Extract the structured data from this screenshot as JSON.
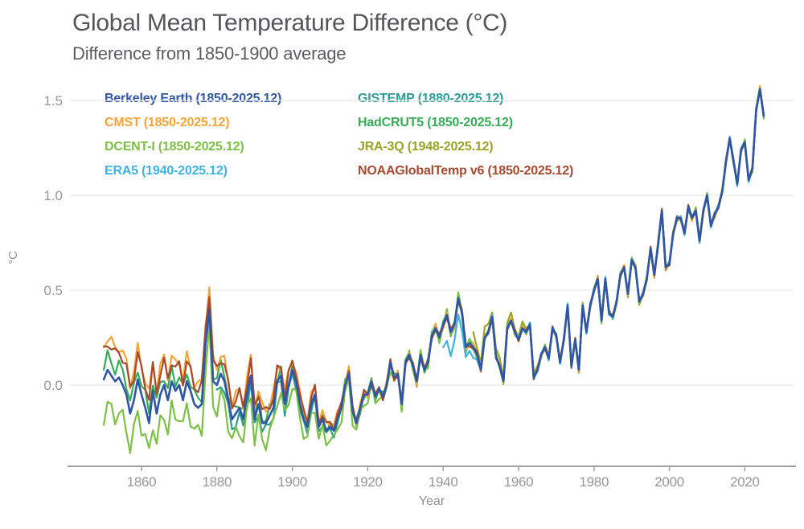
{
  "chart_data": {
    "type": "line",
    "title": "Global Mean Temperature Difference (°C)",
    "subtitle": "Difference from 1850-1900 average",
    "xlabel": "Year",
    "ylabel": "°C",
    "grid": true,
    "legend_position": "top-left, two columns",
    "xlim": [
      1848,
      2032
    ],
    "ylim": [
      -0.45,
      1.65
    ],
    "x_tick_values": [
      1860,
      1880,
      1900,
      1920,
      1940,
      1960,
      1980,
      2000,
      2020
    ],
    "x_tick_labels": [
      "1860",
      "1880",
      "1900",
      "1920",
      "1940",
      "1960",
      "1980",
      "2000",
      "2020"
    ],
    "y_tick_values": [
      0.0,
      0.5,
      1.0,
      1.5
    ],
    "y_tick_labels": [
      "0.0",
      "0.5",
      "1.0",
      "1.5"
    ],
    "years_start": 1850,
    "years_end": 2025,
    "base_values": [
      0.03,
      0.08,
      0.05,
      0.02,
      0.04,
      0.0,
      -0.05,
      -0.15,
      -0.08,
      0.03,
      -0.05,
      -0.12,
      -0.2,
      -0.03,
      -0.15,
      -0.05,
      0.0,
      -0.08,
      0.02,
      -0.03,
      0.0,
      -0.08,
      0.02,
      -0.03,
      -0.1,
      -0.12,
      -0.1,
      0.22,
      0.4,
      0.02,
      0.0,
      0.06,
      0.02,
      -0.08,
      -0.18,
      -0.15,
      -0.12,
      -0.18,
      -0.05,
      0.05,
      -0.18,
      -0.1,
      -0.2,
      -0.2,
      -0.16,
      -0.12,
      0.02,
      0.05,
      -0.1,
      0.0,
      0.08,
      0.02,
      -0.1,
      -0.18,
      -0.22,
      -0.1,
      -0.05,
      -0.22,
      -0.18,
      -0.24,
      -0.22,
      -0.24,
      -0.18,
      -0.12,
      0.0,
      0.06,
      -0.14,
      -0.2,
      -0.12,
      -0.05,
      -0.05,
      0.02,
      -0.06,
      -0.02,
      -0.06,
      0.0,
      0.12,
      0.04,
      0.06,
      -0.1,
      0.12,
      0.16,
      0.1,
      0.02,
      0.16,
      0.08,
      0.12,
      0.26,
      0.3,
      0.25,
      0.32,
      0.37,
      0.28,
      0.32,
      0.46,
      0.38,
      0.2,
      0.22,
      0.2,
      0.16,
      0.08,
      0.25,
      0.28,
      0.36,
      0.15,
      0.1,
      0.02,
      0.3,
      0.34,
      0.28,
      0.24,
      0.3,
      0.28,
      0.32,
      0.04,
      0.08,
      0.16,
      0.2,
      0.14,
      0.3,
      0.26,
      0.12,
      0.24,
      0.42,
      0.1,
      0.24,
      0.08,
      0.42,
      0.28,
      0.42,
      0.5,
      0.56,
      0.34,
      0.56,
      0.38,
      0.36,
      0.44,
      0.58,
      0.62,
      0.48,
      0.66,
      0.62,
      0.44,
      0.48,
      0.56,
      0.72,
      0.58,
      0.74,
      0.92,
      0.62,
      0.64,
      0.8,
      0.88,
      0.88,
      0.8,
      0.94,
      0.88,
      0.92,
      0.76,
      0.92,
      1.0,
      0.84,
      0.9,
      0.94,
      1.02,
      1.18,
      1.3,
      1.18,
      1.06,
      1.24,
      1.28,
      1.08,
      1.14,
      1.45,
      1.56,
      1.42
    ],
    "series": [
      {
        "name": "Berkeley Earth",
        "label": "Berkeley Earth (1850-2025.12)",
        "color": "#2f55a5",
        "start": 1850,
        "offset": 0,
        "offset_from": 1850,
        "offset_until": 1920,
        "noise": 0,
        "phase": 0,
        "width": 2.6
      },
      {
        "name": "CMST",
        "label": "CMST (1850-2025.12)",
        "color": "#f7a437",
        "start": 1850,
        "offset": 0.18,
        "offset_from": 1850,
        "offset_until": 1922,
        "noise": 0.035,
        "phase": 0.8,
        "width": 2.2
      },
      {
        "name": "DCENT-I",
        "label": "DCENT-I (1850-2025.12)",
        "color": "#7cc044",
        "start": 1850,
        "offset": -0.19,
        "offset_from": 1850,
        "offset_until": 1935,
        "noise": 0.05,
        "phase": 2.1,
        "width": 2.2
      },
      {
        "name": "ERA5",
        "label": "ERA5 (1940-2025.12)",
        "color": "#3db3e2",
        "start": 1940,
        "offset": -0.14,
        "offset_from": 1940,
        "offset_until": 1951,
        "noise": 0.03,
        "phase": 4.0,
        "width": 2.2
      },
      {
        "name": "GISTEMP",
        "label": "GISTEMP (1880-2025.12)",
        "color": "#2a9c93",
        "start": 1880,
        "offset": -0.05,
        "offset_from": 1880,
        "offset_until": 1930,
        "noise": 0.03,
        "phase": 5.2,
        "width": 2.2
      },
      {
        "name": "HadCRUT5",
        "label": "HadCRUT5 (1850-2025.12)",
        "color": "#35ab58",
        "start": 1850,
        "offset": 0.07,
        "offset_from": 1850,
        "offset_until": 1922,
        "noise": 0.035,
        "phase": 3.0,
        "width": 2.2
      },
      {
        "name": "JRA-3Q",
        "label": "JRA-3Q (1948-2025.12)",
        "color": "#98a328",
        "start": 1948,
        "offset": 0.05,
        "offset_from": 1948,
        "offset_until": 1970,
        "noise": 0.045,
        "phase": 1.3,
        "width": 2.2
      },
      {
        "name": "NOAAGlobalTemp v6",
        "label": "NOAAGlobalTemp v6 (1850-2025.12)",
        "color": "#a8492f",
        "start": 1850,
        "offset": 0.15,
        "offset_from": 1850,
        "offset_until": 1922,
        "noise": 0.03,
        "phase": 5.8,
        "width": 2.2
      }
    ],
    "draw_order": [
      4,
      5,
      2,
      6,
      1,
      7,
      3,
      0
    ],
    "colors": {
      "title_text": "#545659",
      "tick_text": "#95979a",
      "axis_line": "#a0a0a0",
      "gridline": "#e8e8e8",
      "background": "#ffffff"
    }
  }
}
